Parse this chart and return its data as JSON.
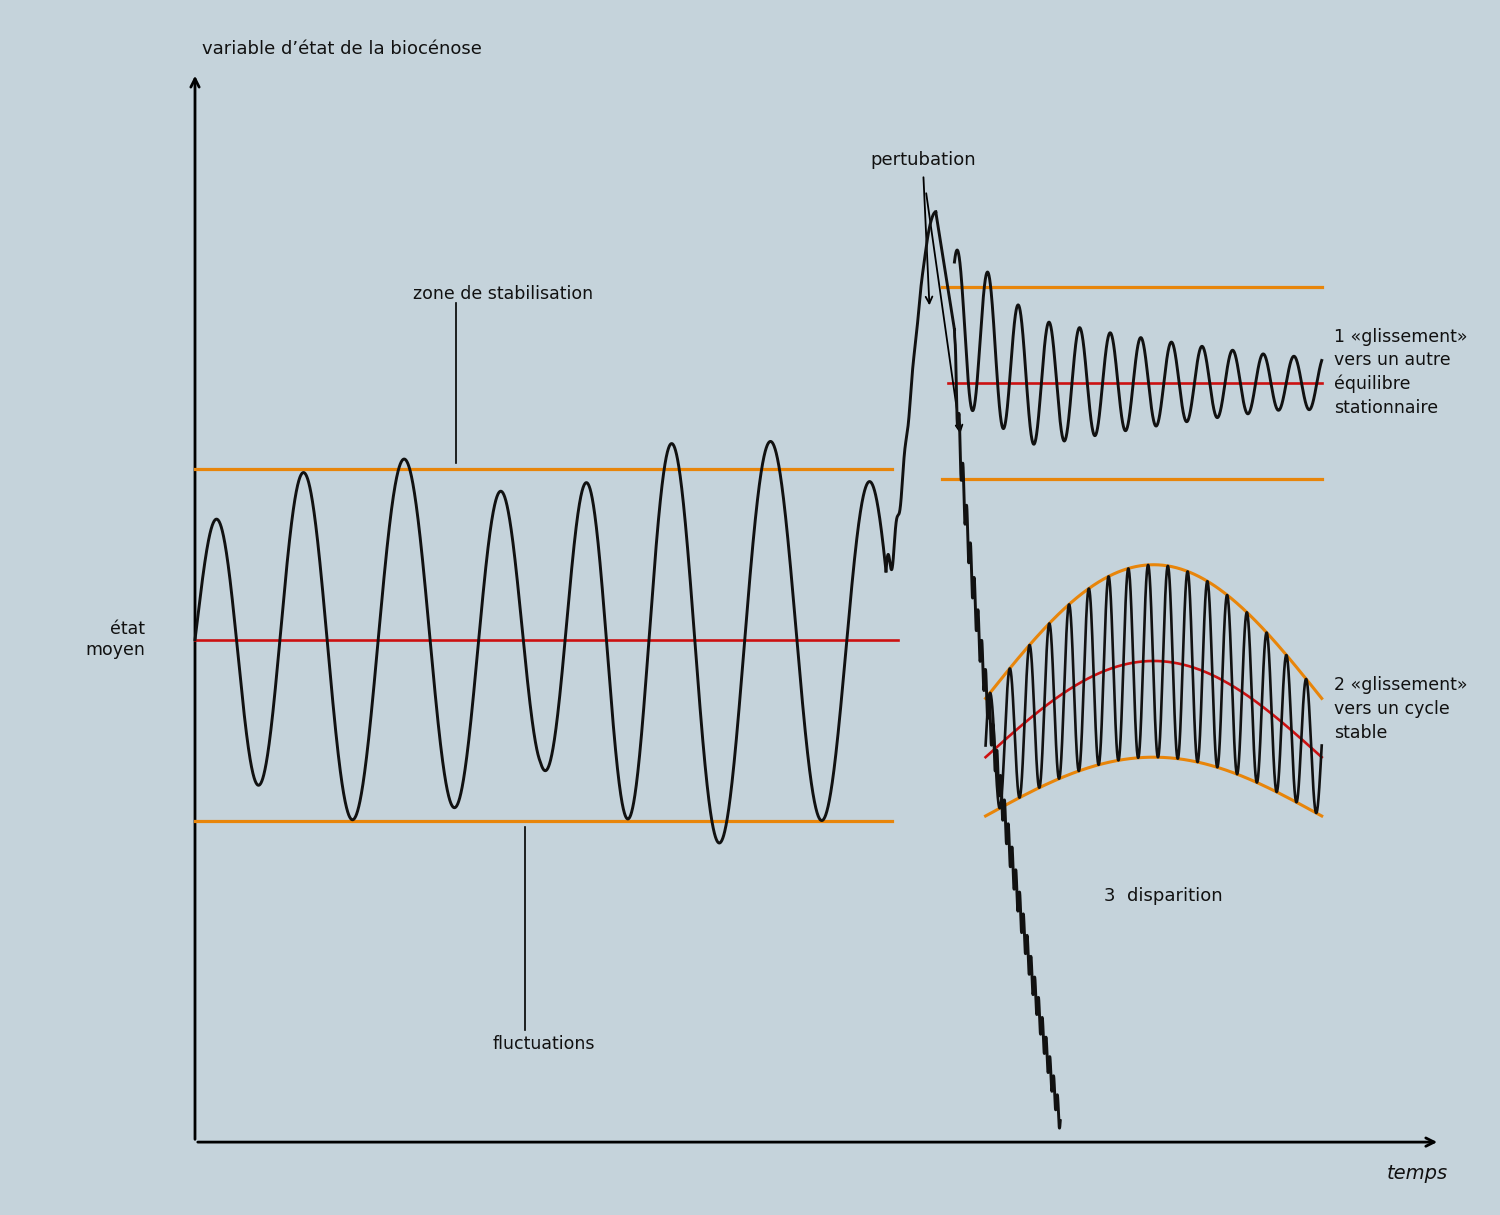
{
  "bg_color": "#c5d3db",
  "ylabel": "variable d’état de la biocénose",
  "xlabel": "temps",
  "orange_color": "#e8850a",
  "red_color": "#cc1111",
  "black_color": "#111111",
  "text_color": "#111111",
  "label1": "1 «glissement»\nvers un autre\néquilibre\nstationnaire",
  "label2": "2 «glissement»\nvers un cycle\nstable",
  "label3": "3  disparition",
  "annot_pertubation": "pertubation",
  "annot_zone": "zone de stabilisation",
  "annot_etat": "état\nmoyen",
  "annot_fluctuations": "fluctuations"
}
